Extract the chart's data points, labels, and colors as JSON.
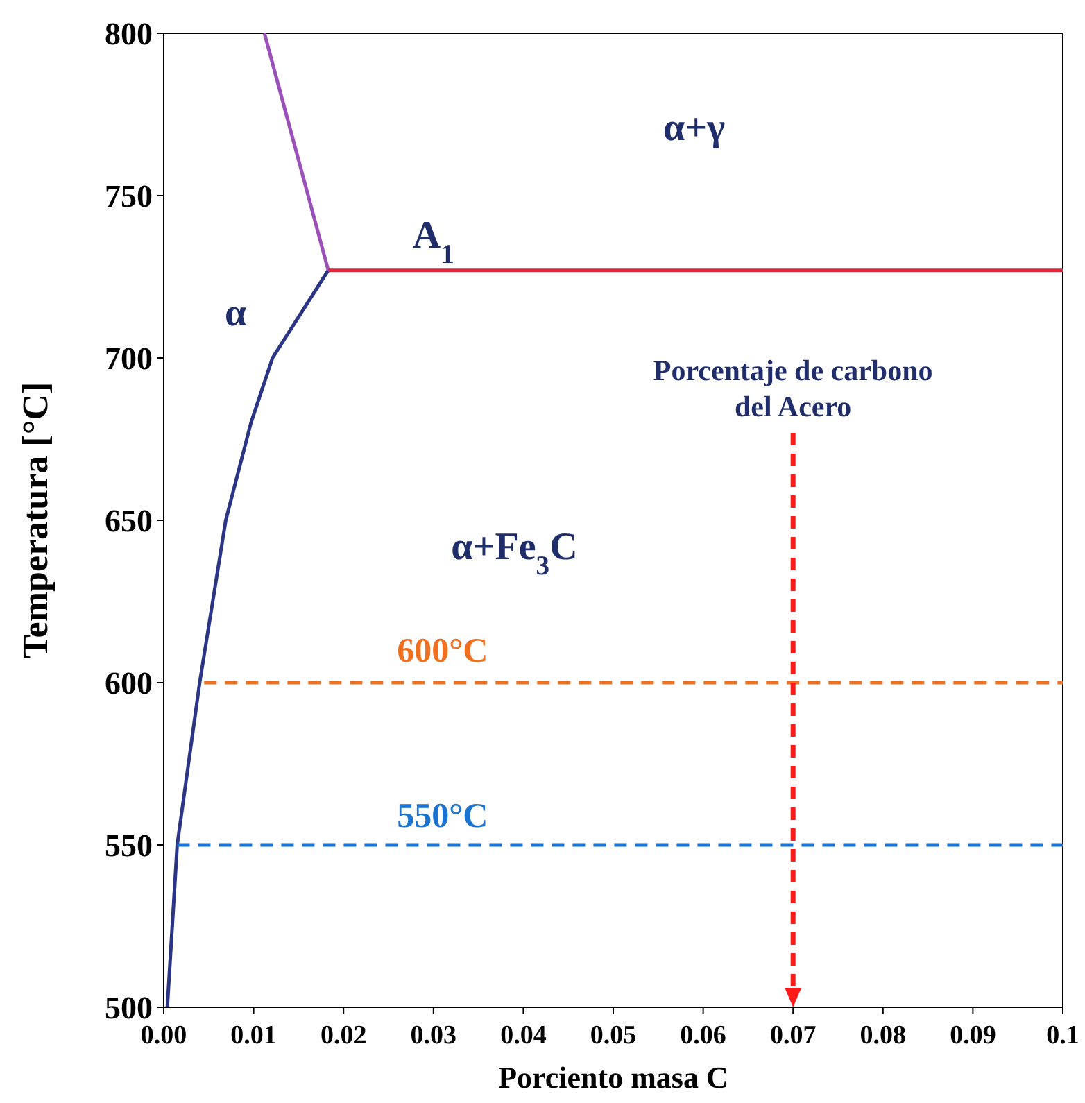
{
  "chart_data": {
    "type": "line",
    "xlabel": "Porciento masa C",
    "ylabel": "Temperatura [°C]",
    "xlim": [
      0,
      0.1
    ],
    "ylim": [
      500,
      800
    ],
    "xticks": [
      {
        "value": 0,
        "label": "0.00"
      },
      {
        "value": 0.01,
        "label": "0.01"
      },
      {
        "value": 0.02,
        "label": "0.02"
      },
      {
        "value": 0.03,
        "label": "0.03"
      },
      {
        "value": 0.04,
        "label": "0.04"
      },
      {
        "value": 0.05,
        "label": "0.05"
      },
      {
        "value": 0.06,
        "label": "0.06"
      },
      {
        "value": 0.07,
        "label": "0.07"
      },
      {
        "value": 0.08,
        "label": "0.08"
      },
      {
        "value": 0.09,
        "label": "0.09"
      },
      0.1
    ],
    "yticks": [
      500,
      550,
      600,
      650,
      700,
      750,
      800
    ],
    "grid": false,
    "marker": "none",
    "series": [
      {
        "color": "#2b3585",
        "x": [
          0.0004,
          0.0015,
          0.004,
          0.0069,
          0.0097,
          0.0121,
          0.0183
        ],
        "values": [
          500,
          550,
          600,
          650,
          680,
          700,
          727
        ]
      },
      {
        "color": "#9b4fb8",
        "x": [
          0.0183,
          0.0112
        ],
        "values": [
          727,
          800
        ]
      },
      {
        "color": "#e8213a",
        "x": [
          0.0183,
          0.1
        ],
        "values": [
          727,
          727
        ]
      },
      {
        "color": "#f07020",
        "line_style": "dashed",
        "x": [
          0.0045,
          0.1
        ],
        "values": [
          600,
          600
        ]
      },
      {
        "color": "#1a74d0",
        "line_style": "dashed",
        "x": [
          0.0015,
          0.1
        ],
        "values": [
          550,
          550
        ]
      }
    ],
    "ref_lines": [
      {
        "axis": "x",
        "value": 0.07,
        "label": "Porcentaje de carbono del Acero",
        "color": "#ff1a1a",
        "line_style": "dashed"
      }
    ],
    "annotations": [
      "α+γ",
      "A$_{1}$",
      "α",
      "α+Fe$_{3}$C",
      "600°C",
      "550°C"
    ]
  }
}
